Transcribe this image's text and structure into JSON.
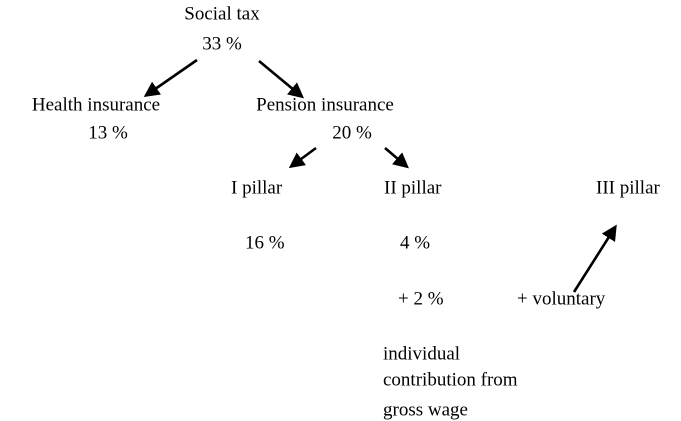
{
  "nodes": [
    {
      "label": "Social tax",
      "value": "33 %"
    },
    {
      "label": "Health insurance",
      "value": "13 %"
    },
    {
      "label": "Pension insurance",
      "value": "20 %"
    },
    {
      "label": "I pillar",
      "value": "16 %"
    },
    {
      "label": "II pillar",
      "value": "4 %",
      "extra": "+ 2 %"
    },
    {
      "label": "III pillar",
      "extra": "+ voluntary"
    }
  ],
  "note": [
    "individual",
    "contribution from",
    "gross wage"
  ]
}
